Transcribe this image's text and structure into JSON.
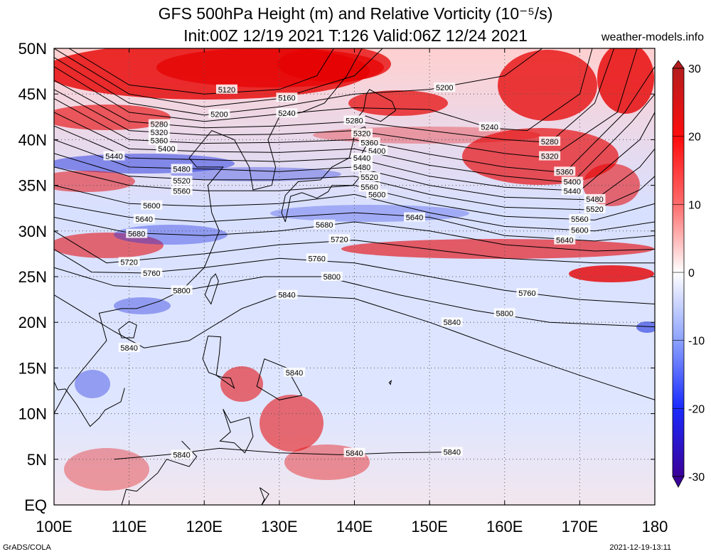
{
  "title": {
    "line1": "GFS 500hPa Height (m) and Relative Vorticity (10⁻⁵/s)",
    "line2": "Init:00Z 12/19 2021 T:126 Valid:06Z 12/24 2021"
  },
  "site": "weather-models.info",
  "footer": {
    "left": "GrADS/COLA",
    "right": "2021-12-19-13:11"
  },
  "map": {
    "lon_range": [
      100,
      180
    ],
    "lat_range": [
      0,
      50
    ],
    "lon_labels": [
      "100E",
      "110E",
      "120E",
      "130E",
      "140E",
      "150E",
      "160E",
      "170E",
      "180"
    ],
    "lat_labels": [
      "50N",
      "45N",
      "40N",
      "35N",
      "30N",
      "25N",
      "20N",
      "15N",
      "10N",
      "5N",
      "EQ"
    ],
    "grid": "dotted",
    "colors": {
      "positive": "#e60000",
      "negative": "#2233dd",
      "neutral": "#ffffff",
      "contour": "#000000"
    }
  },
  "colorbar": {
    "labels": [
      "30",
      "20",
      "10",
      "0",
      "-10",
      "-20",
      "-30"
    ],
    "values": [
      30,
      20,
      10,
      0,
      -10,
      -20,
      -30
    ],
    "colors": [
      "#b51d1d",
      "#e23333",
      "#ff1111",
      "#ff8080",
      "#ffd0d0",
      "#ffffff",
      "#ccd8ff",
      "#8aa0ff",
      "#2244ff",
      "#1100bb",
      "#3a0098"
    ]
  },
  "height_contour_labels": [
    "5120",
    "5160",
    "5200",
    "5240",
    "5280",
    "5320",
    "5360",
    "5400",
    "5440",
    "5480",
    "5520",
    "5560",
    "5600",
    "5640",
    "5680",
    "5720",
    "5760",
    "5800",
    "5840"
  ]
}
